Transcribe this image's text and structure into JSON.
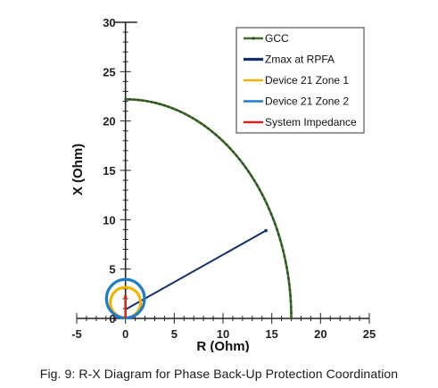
{
  "caption": "Fig. 9:  R-X Diagram for Phase Back-Up Protection Coordination",
  "chart_data": {
    "type": "line",
    "title": "",
    "xlabel": "R (Ohm)",
    "ylabel": "X (Ohm)",
    "xlim": [
      -5,
      25
    ],
    "ylim": [
      0,
      30
    ],
    "x_ticks": [
      -5,
      0,
      5,
      10,
      15,
      20,
      25
    ],
    "y_ticks": [
      0,
      5,
      10,
      15,
      20,
      25,
      30
    ],
    "x_tick_labels": [
      "-5",
      "0",
      "5",
      "10",
      "15",
      "20",
      "25"
    ],
    "y_tick_labels": [
      "0",
      "5",
      "10",
      "15",
      "20",
      "25",
      "30"
    ],
    "grid": false,
    "legend_position": "top-right",
    "series": [
      {
        "name": "GCC",
        "color": "#3d6b2a",
        "shape": "arc",
        "center": [
          0,
          0
        ],
        "radius_r": 17.0,
        "radius_x": 22.2,
        "theta_range_deg": [
          0,
          90
        ],
        "marker": "small-dot"
      },
      {
        "name": "Zmax at RPFA",
        "color": "#13306e",
        "points": [
          [
            0,
            0.9
          ],
          [
            14.4,
            8.9
          ]
        ]
      },
      {
        "name": "Device 21 Zone 1",
        "color": "#f2b400",
        "shape": "circle",
        "center": [
          0,
          1.6
        ],
        "radius": 1.55
      },
      {
        "name": "Device 21 Zone 2",
        "color": "#1f7cc9",
        "shape": "circle",
        "center": [
          0,
          2.0
        ],
        "radius": 1.95
      },
      {
        "name": "System Impedance",
        "color": "#d8261c",
        "points": [
          [
            0,
            0
          ],
          [
            0,
            2.2
          ]
        ]
      }
    ]
  }
}
